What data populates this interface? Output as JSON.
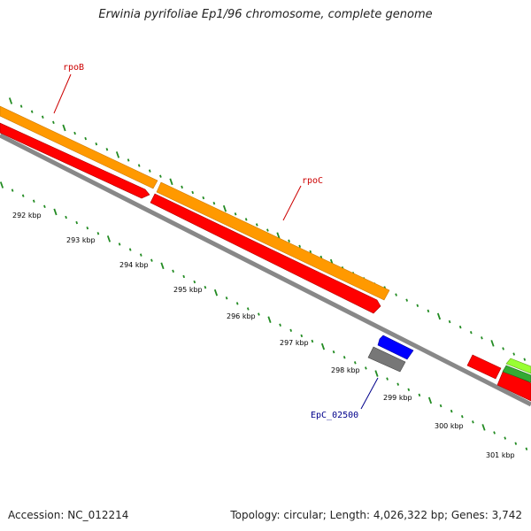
{
  "title": "Erwinia pyrifoliae Ep1/96 chromosome, complete genome",
  "footer": {
    "accession": "Accession: NC_012214",
    "summary": "Topology: circular; Length: 4,026,322 bp; Genes: 3,742"
  },
  "tick_labels": [
    "292 kbp",
    "293 kbp",
    "294 kbp",
    "295 kbp",
    "296 kbp",
    "297 kbp",
    "298 kbp",
    "299 kbp",
    "300 kbp",
    "301 kbp"
  ],
  "gene_labels": [
    {
      "text": "rpoB",
      "color": "#cc0000"
    },
    {
      "text": "rpoC",
      "color": "#cc0000"
    },
    {
      "text": "EpC_02500",
      "color": "#00008b"
    }
  ],
  "colors": {
    "orange_feature": "#ff9900",
    "red_feature": "#ff0000",
    "blue_feature": "#0000ff",
    "gray_feature": "#777777",
    "green_feature": "#33aa33",
    "lime_feature": "#99ff33",
    "backbone": "#888888",
    "ticks": "#228b22"
  }
}
